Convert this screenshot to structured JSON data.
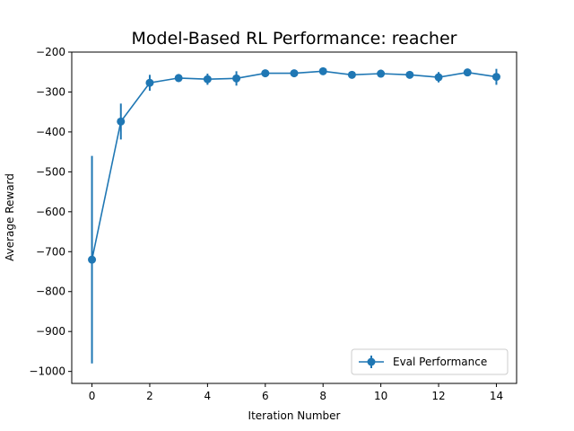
{
  "chart_data": {
    "type": "line",
    "title": "Model-Based RL Performance: reacher",
    "xlabel": "Iteration Number",
    "ylabel": "Average Reward",
    "xlim": [
      -0.7,
      14.7
    ],
    "ylim": [
      -1030,
      -200
    ],
    "xticks": [
      0,
      2,
      4,
      6,
      8,
      10,
      12,
      14
    ],
    "yticks": [
      -1000,
      -900,
      -800,
      -700,
      -600,
      -500,
      -400,
      -300,
      -200
    ],
    "grid": false,
    "legend_position": "lower-right",
    "color": "#1f77b4",
    "series": [
      {
        "name": "Eval Performance",
        "x": [
          0,
          1,
          2,
          3,
          4,
          5,
          6,
          7,
          8,
          9,
          10,
          11,
          12,
          13,
          14
        ],
        "y": [
          -720,
          -374,
          -277,
          -265,
          -268,
          -266,
          -253,
          -253,
          -248,
          -257,
          -254,
          -257,
          -263,
          -251,
          -262
        ],
        "err": [
          260,
          45,
          20,
          10,
          14,
          18,
          8,
          8,
          8,
          8,
          10,
          8,
          13,
          8,
          20
        ]
      }
    ]
  }
}
